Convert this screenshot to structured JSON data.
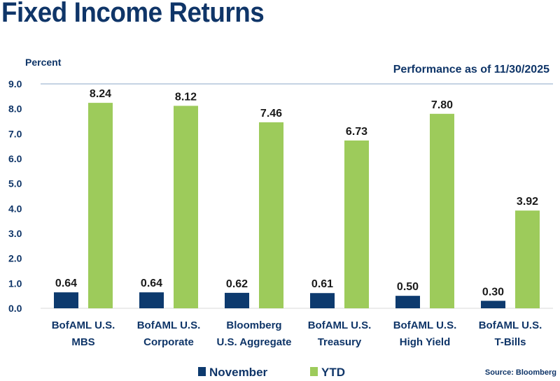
{
  "chart_data": {
    "type": "bar",
    "title": "Fixed Income Returns",
    "subtitle": "Performance as of 11/30/2025",
    "ylabel": "Percent",
    "xlabel": "",
    "ylim": [
      0,
      9
    ],
    "yticks": [
      "0.0",
      "1.0",
      "2.0",
      "3.0",
      "4.0",
      "5.0",
      "6.0",
      "7.0",
      "8.0",
      "9.0"
    ],
    "categories": [
      [
        "BofAML U.S.",
        "MBS"
      ],
      [
        "BofAML U.S.",
        "Corporate"
      ],
      [
        "Bloomberg",
        "U.S. Aggregate"
      ],
      [
        "BofAML U.S.",
        "Treasury"
      ],
      [
        "BofAML U.S.",
        "High Yield"
      ],
      [
        "BofAML U.S.",
        "T-Bills"
      ]
    ],
    "series": [
      {
        "name": "November",
        "color": "#0d3a6e",
        "values": [
          0.64,
          0.64,
          0.62,
          0.61,
          0.5,
          0.3
        ],
        "labels": [
          "0.64",
          "0.64",
          "0.62",
          "0.61",
          "0.50",
          "0.30"
        ]
      },
      {
        "name": "YTD",
        "color": "#9dcb5b",
        "values": [
          8.24,
          8.12,
          7.46,
          6.73,
          7.8,
          3.92
        ],
        "labels": [
          "8.24",
          "8.12",
          "7.46",
          "6.73",
          "7.80",
          "3.92"
        ]
      }
    ],
    "legend_position": "bottom",
    "source": "Source: Bloomberg"
  }
}
